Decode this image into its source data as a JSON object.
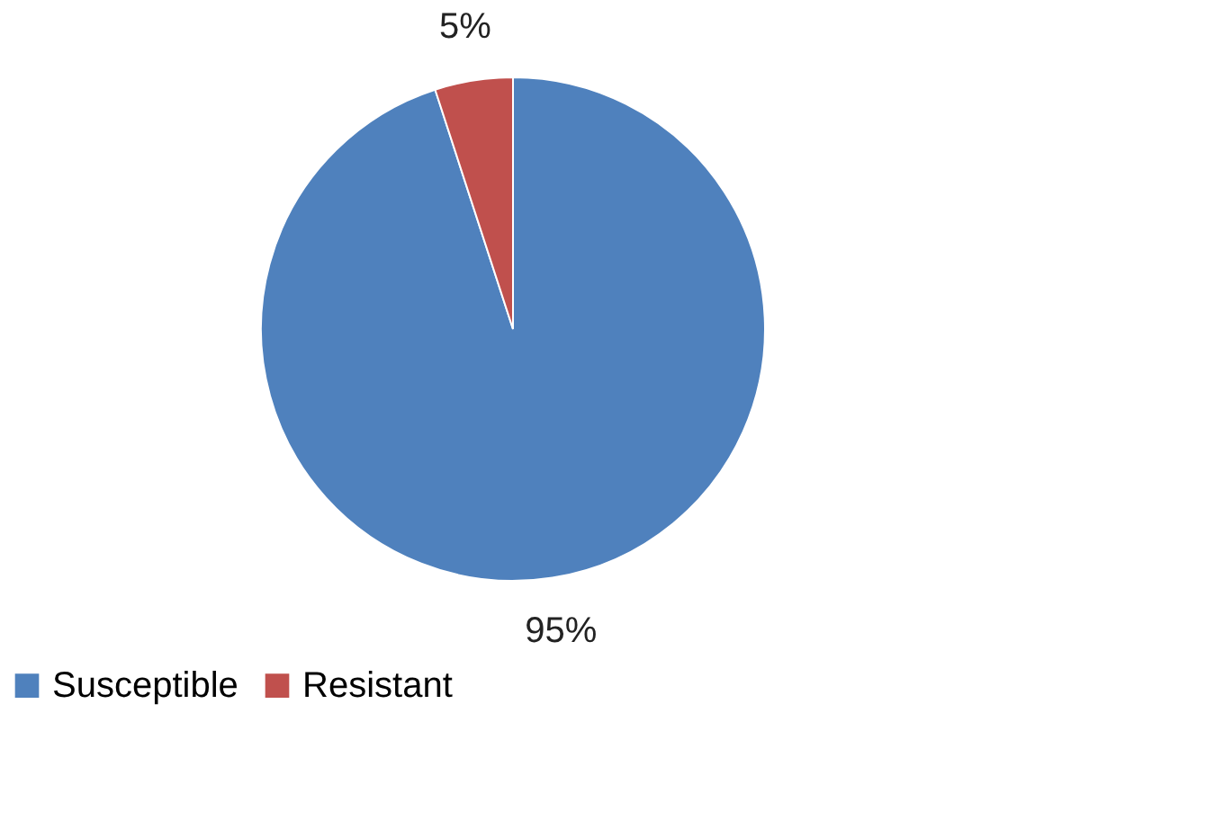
{
  "chart_data": {
    "type": "pie",
    "categories": [
      "Susceptible",
      "Resistant"
    ],
    "values": [
      95,
      5
    ],
    "colors": [
      "#4f81bd",
      "#c0504d"
    ],
    "value_labels": [
      "95%",
      "5%"
    ],
    "legend": "bottom"
  }
}
